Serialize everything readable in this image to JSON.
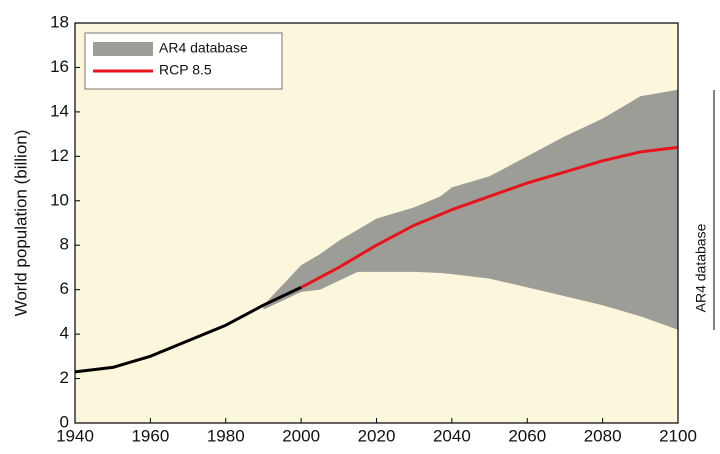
{
  "chart_data": {
    "type": "line",
    "y_label": "World population (billion)",
    "side_label": "AR4 database",
    "xlim": [
      1940,
      2100
    ],
    "xticks": [
      1940,
      1960,
      1980,
      2000,
      2020,
      2040,
      2060,
      2080,
      2100
    ],
    "ylim": [
      0,
      18
    ],
    "yticks": [
      0,
      2,
      4,
      6,
      8,
      10,
      12,
      14,
      16,
      18
    ],
    "legend": "upper left",
    "series": [
      {
        "name": "AR4 database",
        "type": "area",
        "color": "#9d9d98",
        "x": [
          1990,
          2000,
          2005,
          2010,
          2015,
          2020,
          2030,
          2037,
          2040,
          2050,
          2060,
          2070,
          2080,
          2090,
          2100
        ],
        "upper": [
          5.3,
          7.1,
          7.6,
          8.2,
          8.7,
          9.2,
          9.7,
          10.2,
          10.6,
          11.1,
          12.0,
          12.9,
          13.7,
          14.7,
          15.0
        ],
        "lower": [
          5.1,
          5.9,
          6.0,
          6.4,
          6.8,
          6.8,
          6.8,
          6.75,
          6.7,
          6.5,
          6.1,
          5.7,
          5.3,
          4.8,
          4.2
        ]
      },
      {
        "name": "RCP 8.5",
        "type": "line",
        "color": "#e8141c",
        "x": [
          2000,
          2010,
          2020,
          2030,
          2040,
          2050,
          2060,
          2070,
          2080,
          2090,
          2100
        ],
        "values": [
          6.1,
          7.0,
          8.0,
          8.9,
          9.6,
          10.2,
          10.8,
          11.3,
          11.8,
          12.2,
          12.4
        ]
      },
      {
        "type": "line",
        "color": "#000000",
        "x": [
          1940,
          1950,
          1960,
          1970,
          1980,
          1990,
          2000
        ],
        "values": [
          2.3,
          2.5,
          3.0,
          3.7,
          4.4,
          5.3,
          6.1
        ]
      }
    ]
  }
}
